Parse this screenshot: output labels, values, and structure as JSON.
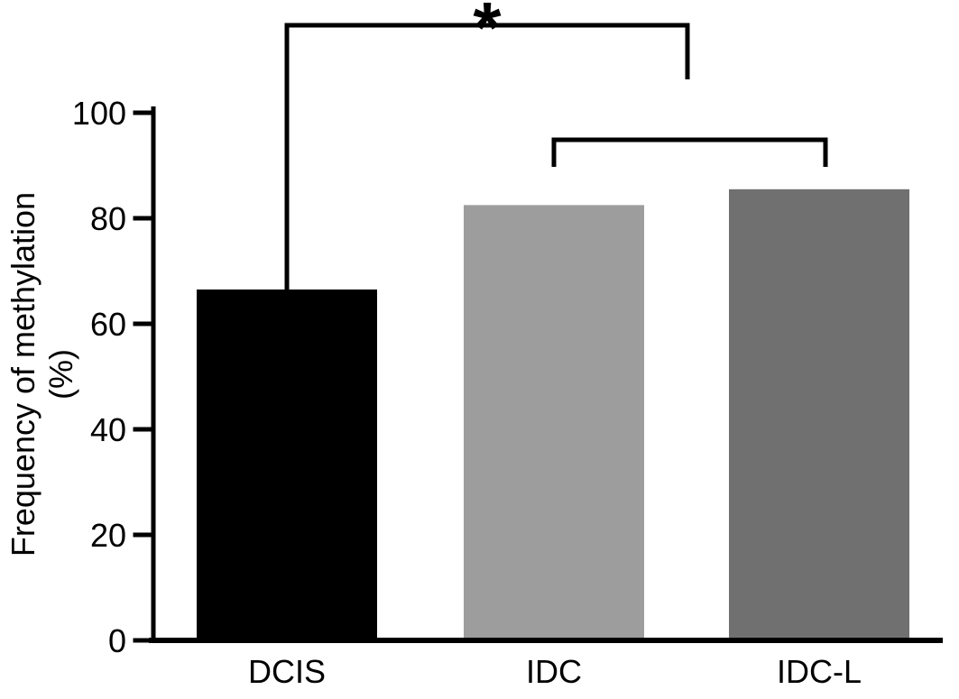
{
  "figure": {
    "background": "#ffffff"
  },
  "chart_data": {
    "type": "bar",
    "title": "",
    "ylabel_line1": "Frequency of methylation",
    "ylabel_line2": "(%)",
    "xlabel": "",
    "categories": [
      "DCIS",
      "IDC",
      "IDC-L"
    ],
    "values": [
      66.5,
      82.5,
      85.5
    ],
    "bar_colors": [
      "#000000",
      "#9d9d9d",
      "#707070"
    ],
    "ylim": [
      0,
      100
    ],
    "yticks": [
      0,
      20,
      40,
      60,
      80,
      100
    ],
    "grid": false,
    "legend": false,
    "axis_color": "#000000",
    "significance": [
      {
        "label": "*",
        "from": "DCIS",
        "to": "IDC-L"
      },
      {
        "label": "",
        "from": "IDC",
        "to": "IDC-L"
      }
    ]
  }
}
